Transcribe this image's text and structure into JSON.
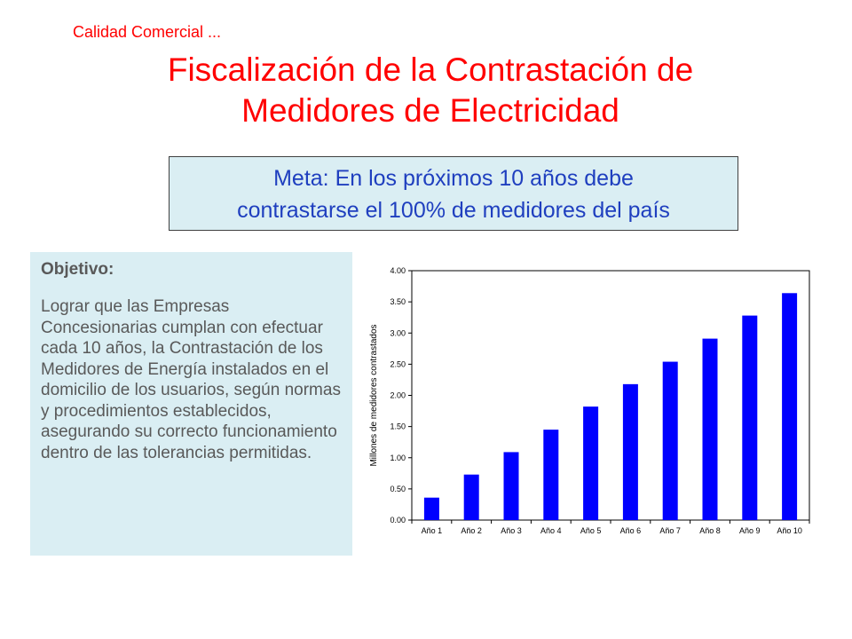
{
  "header": {
    "section_label": "Calidad Comercial ...",
    "title_line1": "Fiscalización de la  Contrastación de",
    "title_line2": "Medidores de Electricidad"
  },
  "goal": {
    "line1": "Meta: En los próximos 10 años debe",
    "line2": "contrastarse el 100% de medidores del país"
  },
  "objective": {
    "heading": "Objetivo:",
    "body": "Lograr que las Empresas Concesionarias cumplan con efectuar cada 10 años, la Contrastación de los Medidores de Energía instalados en el domicilio de los usuarios, según normas y procedimientos establecidos, asegurando su correcto  funcionamiento dentro de las tolerancias permitidas."
  },
  "colors": {
    "title": "#ff0000",
    "goal_text": "#1f3fbf",
    "box_bg": "#daeef3",
    "bar": "#0000ff"
  },
  "chart_data": {
    "type": "bar",
    "categories": [
      "Año 1",
      "Año 2",
      "Año 3",
      "Año 4",
      "Año 5",
      "Año 6",
      "Año 7",
      "Año 8",
      "Año 9",
      "Año 10"
    ],
    "values": [
      0.36,
      0.73,
      1.09,
      1.45,
      1.82,
      2.18,
      2.54,
      2.91,
      3.28,
      3.64
    ],
    "yticks": [
      "0.00",
      "0.50",
      "1.00",
      "1.50",
      "2.00",
      "2.50",
      "3.00",
      "3.50",
      "4.00"
    ],
    "ylim": [
      0,
      4
    ],
    "xlabel": "",
    "ylabel": "Millones de medidores contrastados",
    "grid": false,
    "legend": "none"
  }
}
